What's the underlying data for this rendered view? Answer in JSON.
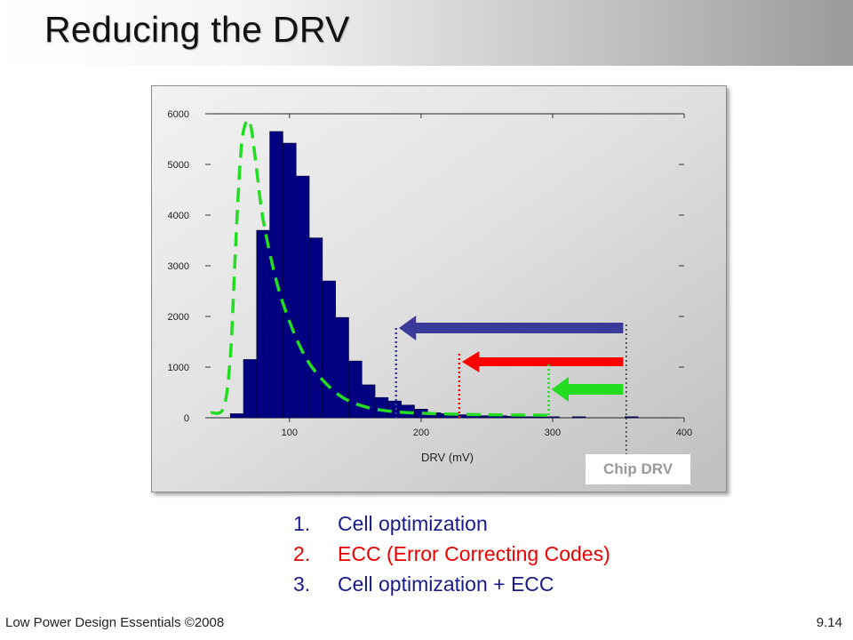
{
  "title": "Reducing the DRV",
  "chart_data": {
    "type": "bar",
    "x": [
      60,
      70,
      80,
      90,
      100,
      110,
      120,
      130,
      140,
      150,
      160,
      170,
      180,
      190,
      200,
      210,
      220,
      230,
      240,
      250,
      260,
      270,
      280,
      290,
      300,
      310,
      320,
      330,
      340,
      350,
      360
    ],
    "values": [
      80,
      1150,
      3700,
      5650,
      5420,
      4770,
      3550,
      2700,
      1980,
      1120,
      650,
      400,
      330,
      250,
      170,
      100,
      80,
      60,
      50,
      40,
      40,
      30,
      20,
      20,
      20,
      0,
      20,
      0,
      0,
      0,
      20
    ],
    "xlabel": "DRV (mV)",
    "ylabel": "",
    "xlim": [
      40,
      400
    ],
    "ylim": [
      0,
      6000
    ],
    "x_ticks": [
      "100",
      "200",
      "300",
      "400"
    ],
    "y_ticks": [
      "0",
      "1000",
      "2000",
      "3000",
      "4000",
      "5000",
      "6000"
    ],
    "bar_color": "#000080",
    "fit_curve": {
      "style": "dashed",
      "color": "#22dd22",
      "points": [
        [
          40,
          100
        ],
        [
          50,
          200
        ],
        [
          55,
          1200
        ],
        [
          58,
          2800
        ],
        [
          61,
          4400
        ],
        [
          64,
          5500
        ],
        [
          68,
          5870
        ],
        [
          71,
          5700
        ],
        [
          75,
          4900
        ],
        [
          80,
          3900
        ],
        [
          90,
          2700
        ],
        [
          100,
          1900
        ],
        [
          110,
          1300
        ],
        [
          120,
          900
        ],
        [
          135,
          500
        ],
        [
          150,
          280
        ],
        [
          170,
          150
        ],
        [
          200,
          90
        ],
        [
          250,
          60
        ],
        [
          300,
          50
        ]
      ]
    },
    "markers": [
      {
        "name": "Cell optimization",
        "color": "#3a3a9a",
        "from_x": 356,
        "to_x": 181
      },
      {
        "name": "ECC (Error Correcting Codes)",
        "color": "#ff0000",
        "from_x": 356,
        "to_x": 229
      },
      {
        "name": "Cell optimization + ECC",
        "color": "#22dd22",
        "from_x": 356,
        "to_x": 297
      }
    ],
    "chip_drv_x": 356,
    "annotation": "Chip DRV"
  },
  "list": [
    {
      "num": "1.",
      "text": "Cell optimization",
      "color": "#1a1a88"
    },
    {
      "num": "2.",
      "text": "ECC (Error Correcting Codes)",
      "color": "#ee0000"
    },
    {
      "num": "3.",
      "text": "Cell optimization + ECC",
      "color": "#1a1a88"
    }
  ],
  "footer": {
    "left": "Low Power Design Essentials ©2008",
    "right": "9.14"
  }
}
